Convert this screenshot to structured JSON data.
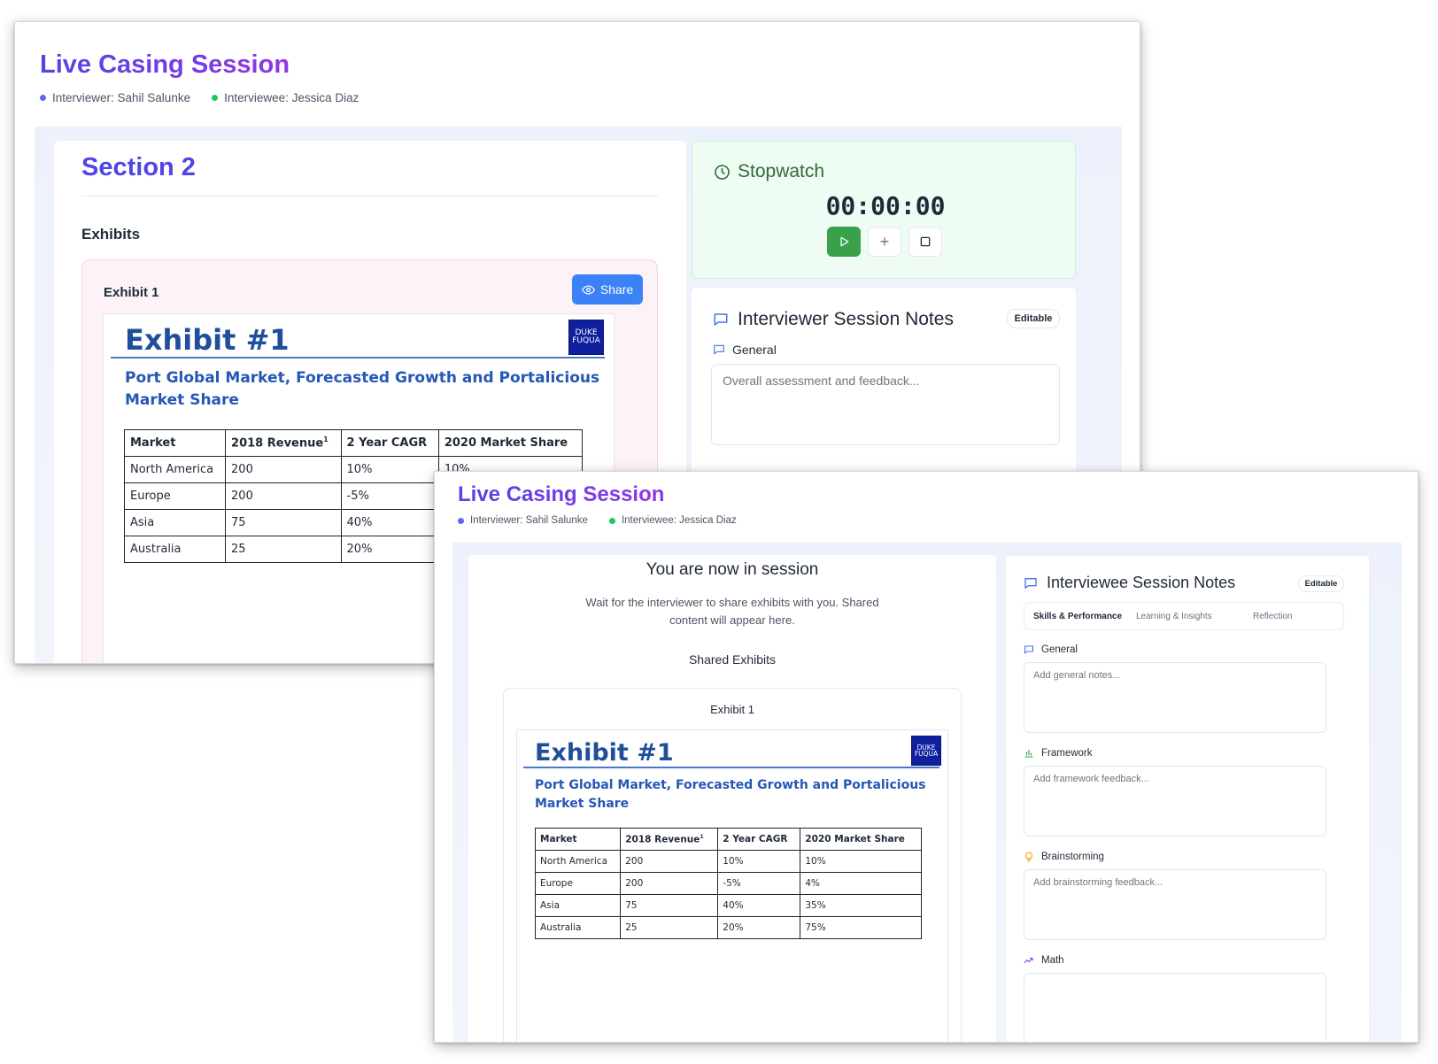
{
  "interviewer_window": {
    "app_title": "Live Casing Session",
    "interviewer": "Interviewer: Sahil Salunke",
    "interviewee": "Interviewee: Jessica Diaz",
    "section_title": "Section 2",
    "exhibits_label": "Exhibits",
    "exhibit_panel_label": "Exhibit 1",
    "share_label": "Share",
    "stopwatch": {
      "title": "Stopwatch",
      "time": "00:00:00",
      "plus_label": "+"
    },
    "notes": {
      "title": "Interviewer Session Notes",
      "badge": "Editable",
      "general_label": "General",
      "general_placeholder": "Overall assessment and feedback..."
    }
  },
  "interviewee_window": {
    "app_title": "Live Casing Session",
    "interviewer": "Interviewer: Sahil Salunke",
    "interviewee": "Interviewee: Jessica Diaz",
    "session_heading": "You are now in session",
    "session_desc": "Wait for the interviewer to share exhibits with you. Shared content will appear here.",
    "shared_exhibits_label": "Shared Exhibits",
    "exhibit_panel_label": "Exhibit 1",
    "notes": {
      "title": "Interviewee Session Notes",
      "badge": "Editable",
      "tabs": [
        "Skills & Performance",
        "Learning & Insights",
        "Reflection"
      ],
      "fields": [
        {
          "label": "General",
          "placeholder": "Add general notes..."
        },
        {
          "label": "Framework",
          "placeholder": "Add framework feedback..."
        },
        {
          "label": "Brainstorming",
          "placeholder": "Add brainstorming feedback..."
        },
        {
          "label": "Math",
          "placeholder": ""
        }
      ]
    }
  },
  "exhibit": {
    "title": "Exhibit #1",
    "subtitle": "Port Global Market, Forecasted Growth and Portalicious Market Share",
    "logo_line1": "DUKE",
    "logo_line2": "FUQUA",
    "headers": [
      "Market",
      "2018 Revenue",
      "2 Year CAGR",
      "2020 Market Share"
    ],
    "header_footnote": "1",
    "rows": [
      [
        "North America",
        "200",
        "10%",
        "10%"
      ],
      [
        "Europe",
        "200",
        "-5%",
        "4%"
      ],
      [
        "Asia",
        "75",
        "40%",
        "35%"
      ],
      [
        "Australia",
        "25",
        "20%",
        "75%"
      ]
    ]
  },
  "colors": {
    "accent": "#4f46e5",
    "share_button": "#3b82f6",
    "play_button": "#3aa14b",
    "stopwatch_bg": "#effcf3",
    "exhibit_blue": "#1f4e9b"
  }
}
